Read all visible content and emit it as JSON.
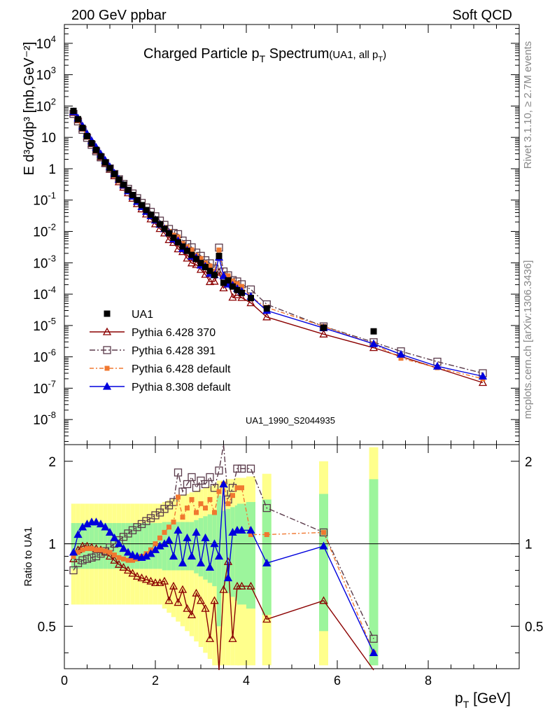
{
  "header": {
    "left": "200 GeV ppbar",
    "right": "Soft QCD"
  },
  "side": {
    "top": "Rivet 3.1.10, ≥ 2.7M events",
    "bottom": "mcplots.cern.ch [arXiv:1306.3436]"
  },
  "chart_data": {
    "type": "scatter",
    "title": {
      "main_a": "Charged Particle p",
      "main_sub": "T",
      "main_b": " Spectrum",
      "note_a": "(UA1, all p",
      "note_sub": "T",
      "note_b": ")"
    },
    "watermark": "UA1_1990_S2044935",
    "xlabel": {
      "text": "p",
      "sub": "T",
      "unit": " [GeV]"
    },
    "ylabel_top": "E d³σ/dp³ [mb,GeV⁻²]",
    "ylabel_bottom": "Ratio to UA1",
    "xlim": [
      0,
      10
    ],
    "ylim_top_log10": [
      -8.8,
      4.6
    ],
    "ylim_ratio": [
      0.35,
      2.3
    ],
    "yscale_top": "log",
    "yscale_ratio": "log",
    "x_ticks": [
      "0",
      "2",
      "4",
      "6",
      "8"
    ],
    "y_ticks_top": [
      {
        "v": 0.0001,
        "b": "10",
        "e": "-4"
      },
      {
        "v": 0.001,
        "b": "10",
        "e": "-3"
      },
      {
        "v": 0.01,
        "b": "10",
        "e": "-2"
      },
      {
        "v": 0.1,
        "b": "10",
        "e": "-1"
      },
      {
        "v": 1,
        "b": "1",
        "e": ""
      },
      {
        "v": 10,
        "b": "10",
        "e": ""
      },
      {
        "v": 100,
        "b": "10",
        "e": "2"
      },
      {
        "v": 1000,
        "b": "10",
        "e": "3"
      },
      {
        "v": 10000,
        "b": "10",
        "e": "4"
      },
      {
        "v": 1e-08,
        "b": "10",
        "e": "-8"
      },
      {
        "v": 1e-07,
        "b": "10",
        "e": "-7"
      },
      {
        "v": 1e-06,
        "b": "10",
        "e": "-6"
      },
      {
        "v": 1e-05,
        "b": "10",
        "e": "-5"
      }
    ],
    "y_ticks_ratio": [
      {
        "v": 0.5,
        "t": "0.5"
      },
      {
        "v": 1,
        "t": "1"
      },
      {
        "v": 2,
        "t": "2"
      }
    ],
    "legend_position": "lower-left",
    "data": {
      "name": "UA1",
      "x": [
        0.2,
        0.3,
        0.4,
        0.5,
        0.6,
        0.7,
        0.8,
        0.9,
        1.0,
        1.1,
        1.2,
        1.3,
        1.4,
        1.5,
        1.6,
        1.7,
        1.8,
        1.9,
        2.0,
        2.1,
        2.2,
        2.3,
        2.4,
        2.5,
        2.6,
        2.7,
        2.8,
        2.9,
        3.0,
        3.1,
        3.2,
        3.3,
        3.4,
        3.5,
        3.6,
        3.7,
        3.8,
        3.9,
        4.1,
        4.45,
        5.7,
        6.8
      ],
      "y": [
        70,
        38,
        20,
        11,
        6.5,
        4.0,
        2.5,
        1.6,
        1.05,
        0.68,
        0.45,
        0.31,
        0.21,
        0.145,
        0.1,
        0.069,
        0.048,
        0.034,
        0.024,
        0.017,
        0.0121,
        0.0087,
        0.0063,
        0.0045,
        0.0033,
        0.0024,
        0.00178,
        0.00132,
        0.00098,
        0.00073,
        0.00055,
        0.00041,
        0.00165,
        0.00023,
        0.000275,
        0.000175,
        0.000135,
        0.00011,
        7.5e-05,
        3.5e-05,
        8.5e-06,
        6.5e-06
      ],
      "band_half_inner": [
        0.19,
        0.19,
        0.19,
        0.19,
        0.19,
        0.19,
        0.19,
        0.19,
        0.19,
        0.19,
        0.19,
        0.19,
        0.19,
        0.19,
        0.19,
        0.19,
        0.19,
        0.19,
        0.19,
        0.19,
        0.2,
        0.2,
        0.2,
        0.2,
        0.2,
        0.2,
        0.2,
        0.22,
        0.24,
        0.26,
        0.28,
        0.3,
        0.5,
        0.32,
        0.34,
        0.36,
        0.38,
        0.4,
        0.42,
        0.45,
        0.52,
        0.72
      ],
      "band_half_outer": [
        0.4,
        0.4,
        0.4,
        0.4,
        0.4,
        0.4,
        0.4,
        0.4,
        0.4,
        0.4,
        0.4,
        0.4,
        0.4,
        0.4,
        0.4,
        0.4,
        0.4,
        0.4,
        0.4,
        0.4,
        0.42,
        0.44,
        0.46,
        0.48,
        0.5,
        0.52,
        0.54,
        0.56,
        0.58,
        0.6,
        0.62,
        0.64,
        0.7,
        0.7,
        0.72,
        0.72,
        0.74,
        0.74,
        0.76,
        0.8,
        1.0,
        1.25
      ]
    },
    "series": [
      {
        "name": "Pythia 6.428 370",
        "color": "#8b0000",
        "marker": "triangle-open",
        "dash": "",
        "ratio": [
          0.88,
          0.95,
          0.98,
          0.98,
          0.97,
          0.96,
          0.95,
          0.93,
          0.9,
          0.87,
          0.84,
          0.82,
          0.8,
          0.78,
          0.76,
          0.75,
          0.74,
          0.73,
          0.72,
          0.72,
          0.73,
          0.62,
          0.7,
          0.61,
          0.68,
          0.58,
          0.55,
          0.66,
          0.62,
          0.58,
          0.45,
          0.62,
          0.3,
          0.68,
          0.86,
          0.45,
          0.7,
          0.7,
          0.7,
          0.53,
          0.62,
          0.3
        ],
        "tail_x": [
          9.2
        ],
        "tail_y": [
          1.5e-07
        ]
      },
      {
        "name": "Pythia 6.428 391",
        "color": "#5a3a4a",
        "marker": "square-open",
        "dash": "8,3,2,3",
        "ratio": [
          0.8,
          0.85,
          0.87,
          0.88,
          0.89,
          0.9,
          0.92,
          0.94,
          0.97,
          1.0,
          1.03,
          1.06,
          1.09,
          1.12,
          1.15,
          1.18,
          1.21,
          1.24,
          1.27,
          1.3,
          1.34,
          1.38,
          1.42,
          1.82,
          1.55,
          1.65,
          1.75,
          1.6,
          1.7,
          1.65,
          1.75,
          1.6,
          1.85,
          2.3,
          1.45,
          1.6,
          1.88,
          1.88,
          1.88,
          1.35,
          1.1,
          0.45
        ],
        "tail_x": [
          7.4,
          8.2,
          9.2
        ],
        "tail_y": [
          1.5e-06,
          7e-07,
          3e-07
        ]
      },
      {
        "name": "Pythia 6.428 default",
        "color": "#f07830",
        "marker": "square-filled",
        "dash": "6,3,2,3",
        "ratio": [
          0.9,
          0.93,
          0.95,
          0.96,
          0.96,
          0.95,
          0.95,
          0.94,
          0.93,
          0.91,
          0.89,
          0.88,
          0.87,
          0.87,
          0.88,
          0.9,
          0.92,
          0.95,
          1.0,
          1.05,
          1.1,
          1.15,
          1.2,
          1.48,
          1.25,
          1.35,
          1.45,
          1.3,
          1.4,
          1.35,
          1.45,
          1.3,
          1.55,
          1.65,
          1.4,
          1.5,
          1.6,
          1.6,
          1.08,
          1.08,
          1.1,
          0.4
        ],
        "tail_x": [
          7.4,
          8.2,
          9.2
        ],
        "tail_y": [
          9e-07,
          4.5e-07,
          2e-07
        ]
      },
      {
        "name": "Pythia 8.308 default",
        "color": "#0000dd",
        "marker": "triangle-filled",
        "dash": "",
        "ratio": [
          0.93,
          1.08,
          1.15,
          1.18,
          1.2,
          1.2,
          1.18,
          1.15,
          1.1,
          1.05,
          1.0,
          0.96,
          0.93,
          0.91,
          0.9,
          0.89,
          0.9,
          0.92,
          0.95,
          0.98,
          1.0,
          1.03,
          0.9,
          1.12,
          0.85,
          1.05,
          0.9,
          1.1,
          0.85,
          1.05,
          0.82,
          1.0,
          0.9,
          1.65,
          0.75,
          1.1,
          1.12,
          1.12,
          1.12,
          0.85,
          0.98,
          0.4
        ],
        "tail_x": [
          7.4,
          8.2,
          9.2
        ],
        "tail_y": [
          1.2e-06,
          5e-07,
          2.4e-07
        ]
      }
    ]
  }
}
